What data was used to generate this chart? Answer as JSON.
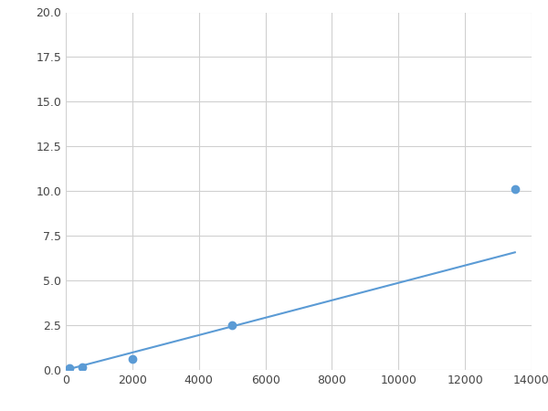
{
  "x_data": [
    100,
    500,
    2000,
    5000,
    13500
  ],
  "y_data": [
    0.08,
    0.15,
    0.6,
    2.5,
    10.1
  ],
  "line_color": "#5B9BD5",
  "marker_color": "#5B9BD5",
  "marker_size": 6,
  "line_width": 1.5,
  "xlim": [
    0,
    14000
  ],
  "ylim": [
    0,
    20.0
  ],
  "xticks": [
    0,
    2000,
    4000,
    6000,
    8000,
    10000,
    12000,
    14000
  ],
  "yticks": [
    0.0,
    2.5,
    5.0,
    7.5,
    10.0,
    12.5,
    15.0,
    17.5,
    20.0
  ],
  "grid_color": "#d0d0d0",
  "background_color": "#ffffff",
  "figure_facecolor": "#ffffff"
}
